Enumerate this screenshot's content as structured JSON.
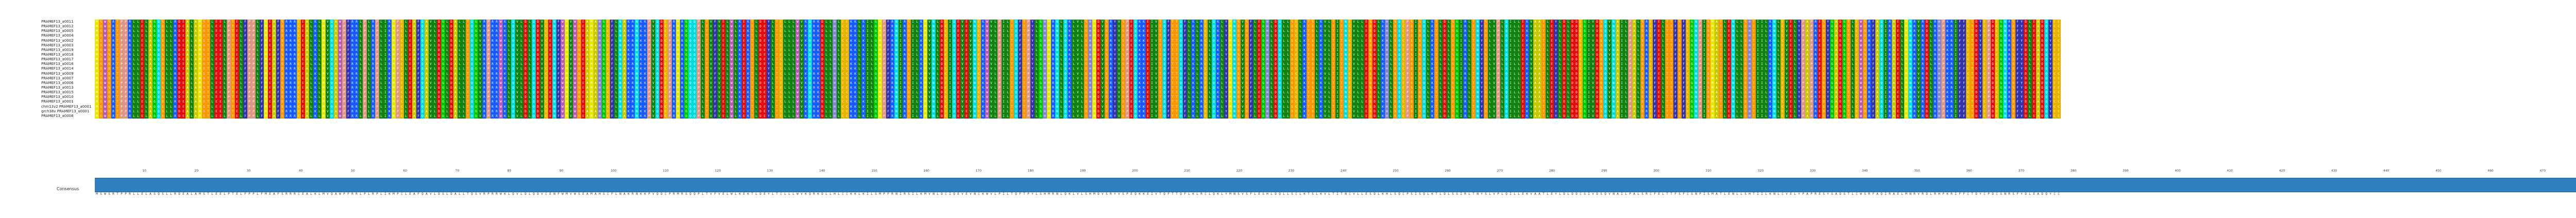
{
  "sequences": [
    {
      "name": "PRAMEF13_a0011",
      "end": "478"
    },
    {
      "name": "PRAMEF13_a0012",
      "end": "478"
    },
    {
      "name": "PRAMEF13_a0005",
      "end": "478"
    },
    {
      "name": "PRAMEF13_a0004",
      "end": "478"
    },
    {
      "name": "PRAMEF13_a0002",
      "end": "478"
    },
    {
      "name": "PRAMEF13_a0003",
      "end": "478"
    },
    {
      "name": "PRAMEF13_a0019",
      "end": "478"
    },
    {
      "name": "PRAMEF13_a0018",
      "end": "478"
    },
    {
      "name": "PRAMEF13_a0017",
      "end": "478"
    },
    {
      "name": "PRAMEF13_a0016",
      "end": "478"
    },
    {
      "name": "PRAMEF13_a0014",
      "end": "478"
    },
    {
      "name": "PRAMEF13_a0009",
      "end": "478"
    },
    {
      "name": "PRAMEF13_a0007",
      "end": "478"
    },
    {
      "name": "PRAMEF13_a0006",
      "end": "478"
    },
    {
      "name": "PRAMEF13_a0013",
      "end": "478"
    },
    {
      "name": "PRAMEF13_a0015",
      "end": "478"
    },
    {
      "name": "PRAMEF13_a0010",
      "end": "478"
    },
    {
      "name": "PRAMEF13_a0001",
      "end": "478"
    },
    {
      "name": "chm13v2 PRAMEF13_a0001",
      "end": "478"
    },
    {
      "name": "grch38v PRAMEF13_a0001",
      "end": "478"
    },
    {
      "name": "PRAMEF13_a0008",
      "end": "478"
    }
  ],
  "residue_colors": {
    "A": "#c8c800",
    "C": "#e6b400",
    "D": "#e60a0a",
    "E": "#e60a0a",
    "F": "#3232aa",
    "G": "#00c800",
    "H": "#8282d2",
    "I": "#0f820f",
    "K": "#145aff",
    "L": "#0f820f",
    "M": "#e6e600",
    "N": "#00dcdc",
    "P": "#dc9682",
    "Q": "#00dcdc",
    "R": "#145aff",
    "S": "#fa9600",
    "T": "#fa9600",
    "V": "#0f820f",
    "W": "#b45ab4",
    "Y": "#3232aa"
  },
  "ruler_ticks": [
    "10",
    "20",
    "30",
    "40",
    "50",
    "60",
    "70",
    "80",
    "90",
    "100",
    "110",
    "120",
    "130",
    "140",
    "150",
    "160",
    "170",
    "180",
    "190",
    "200",
    "210",
    "220",
    "230",
    "240",
    "250",
    "260",
    "270",
    "280",
    "290",
    "300",
    "310",
    "320",
    "330",
    "340",
    "350",
    "360",
    "370",
    "380",
    "390",
    "400",
    "410",
    "420",
    "430",
    "440",
    "450",
    "460",
    "470"
  ],
  "consensus": {
    "label": "Consensus",
    "sequence": "MSWSRTPPRLLELAGQSLLRDEALAMSTLEELPTELFPPLFMEAFSRRRCEALKLMVQAWPFRRLPLRPLIKMPCLEAFQAVLDGLDALLTQGVRPRRWKLQVLDLQDVCENFWMVWSEAMAHGCFLNAKRNKKPVQDCPRMRGQQPLTVFVELWLKEKTLDEYLTCLLLWVKQRKDLLHLCCKKLKILGMPFRNIRSILKMVNLDCIQEVEVNCKWVLPILTQFTPYLGHMRNLQKLVLSHMDVSRYVSPEQKKEIVTQFTTQFLKLRCLQKLYMNSVSFLEGHLDQLLSCLKTSLKVLTITNCVLLESDLKHLSQCPSISQLKTLDLSGIRLTNYSLVPLQILLEKVAATLEYLDLDDCGIVDSQVNAILPALSRCFELTTFSFCGNPISMATLENLLSHTIILKNLCVELYPAPRESYGADGTLCWSRFAQIRAELMNRVRDLRHPKRIFFCTDYCPDCGNRSFYDLEADQYCC"
  }
}
